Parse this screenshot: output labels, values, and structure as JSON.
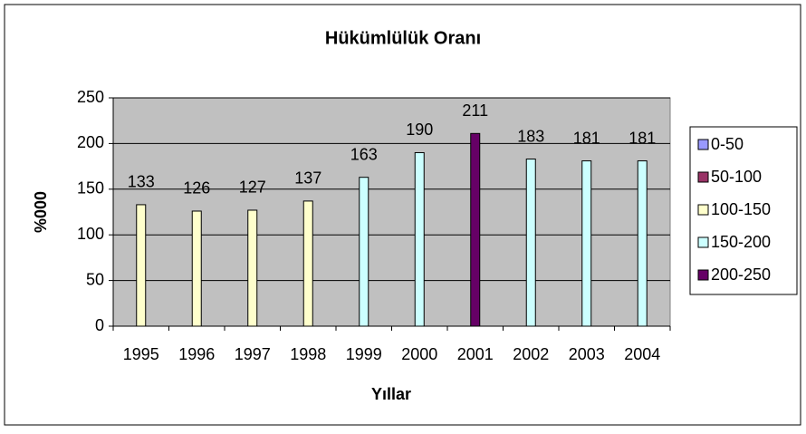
{
  "chart_data": {
    "type": "bar",
    "title": "Hükümlülük Oranı",
    "x_label": "Yıllar",
    "y_label": "%000",
    "categories": [
      "1995",
      "1996",
      "1997",
      "1998",
      "1999",
      "2000",
      "2001",
      "2002",
      "2003",
      "2004"
    ],
    "series": [
      {
        "name": "0-50",
        "color": "#9999ff",
        "values": [
          null,
          null,
          null,
          null,
          null,
          null,
          null,
          null,
          null,
          null
        ]
      },
      {
        "name": "50-100",
        "color": "#993366",
        "values": [
          null,
          null,
          null,
          null,
          null,
          null,
          null,
          null,
          null,
          null
        ]
      },
      {
        "name": "100-150",
        "color": "#ffffcc",
        "values": [
          133,
          126,
          127,
          137,
          null,
          null,
          null,
          null,
          null,
          null
        ]
      },
      {
        "name": "150-200",
        "color": "#ccffff",
        "values": [
          null,
          null,
          null,
          null,
          163,
          190,
          null,
          183,
          181,
          181
        ]
      },
      {
        "name": "200-250",
        "color": "#660066",
        "values": [
          null,
          null,
          null,
          null,
          null,
          null,
          211,
          null,
          null,
          null
        ]
      }
    ],
    "ylim": [
      0,
      250
    ],
    "yticks": [
      0,
      50,
      100,
      150,
      200,
      250
    ],
    "grid": true,
    "legend": "right"
  }
}
